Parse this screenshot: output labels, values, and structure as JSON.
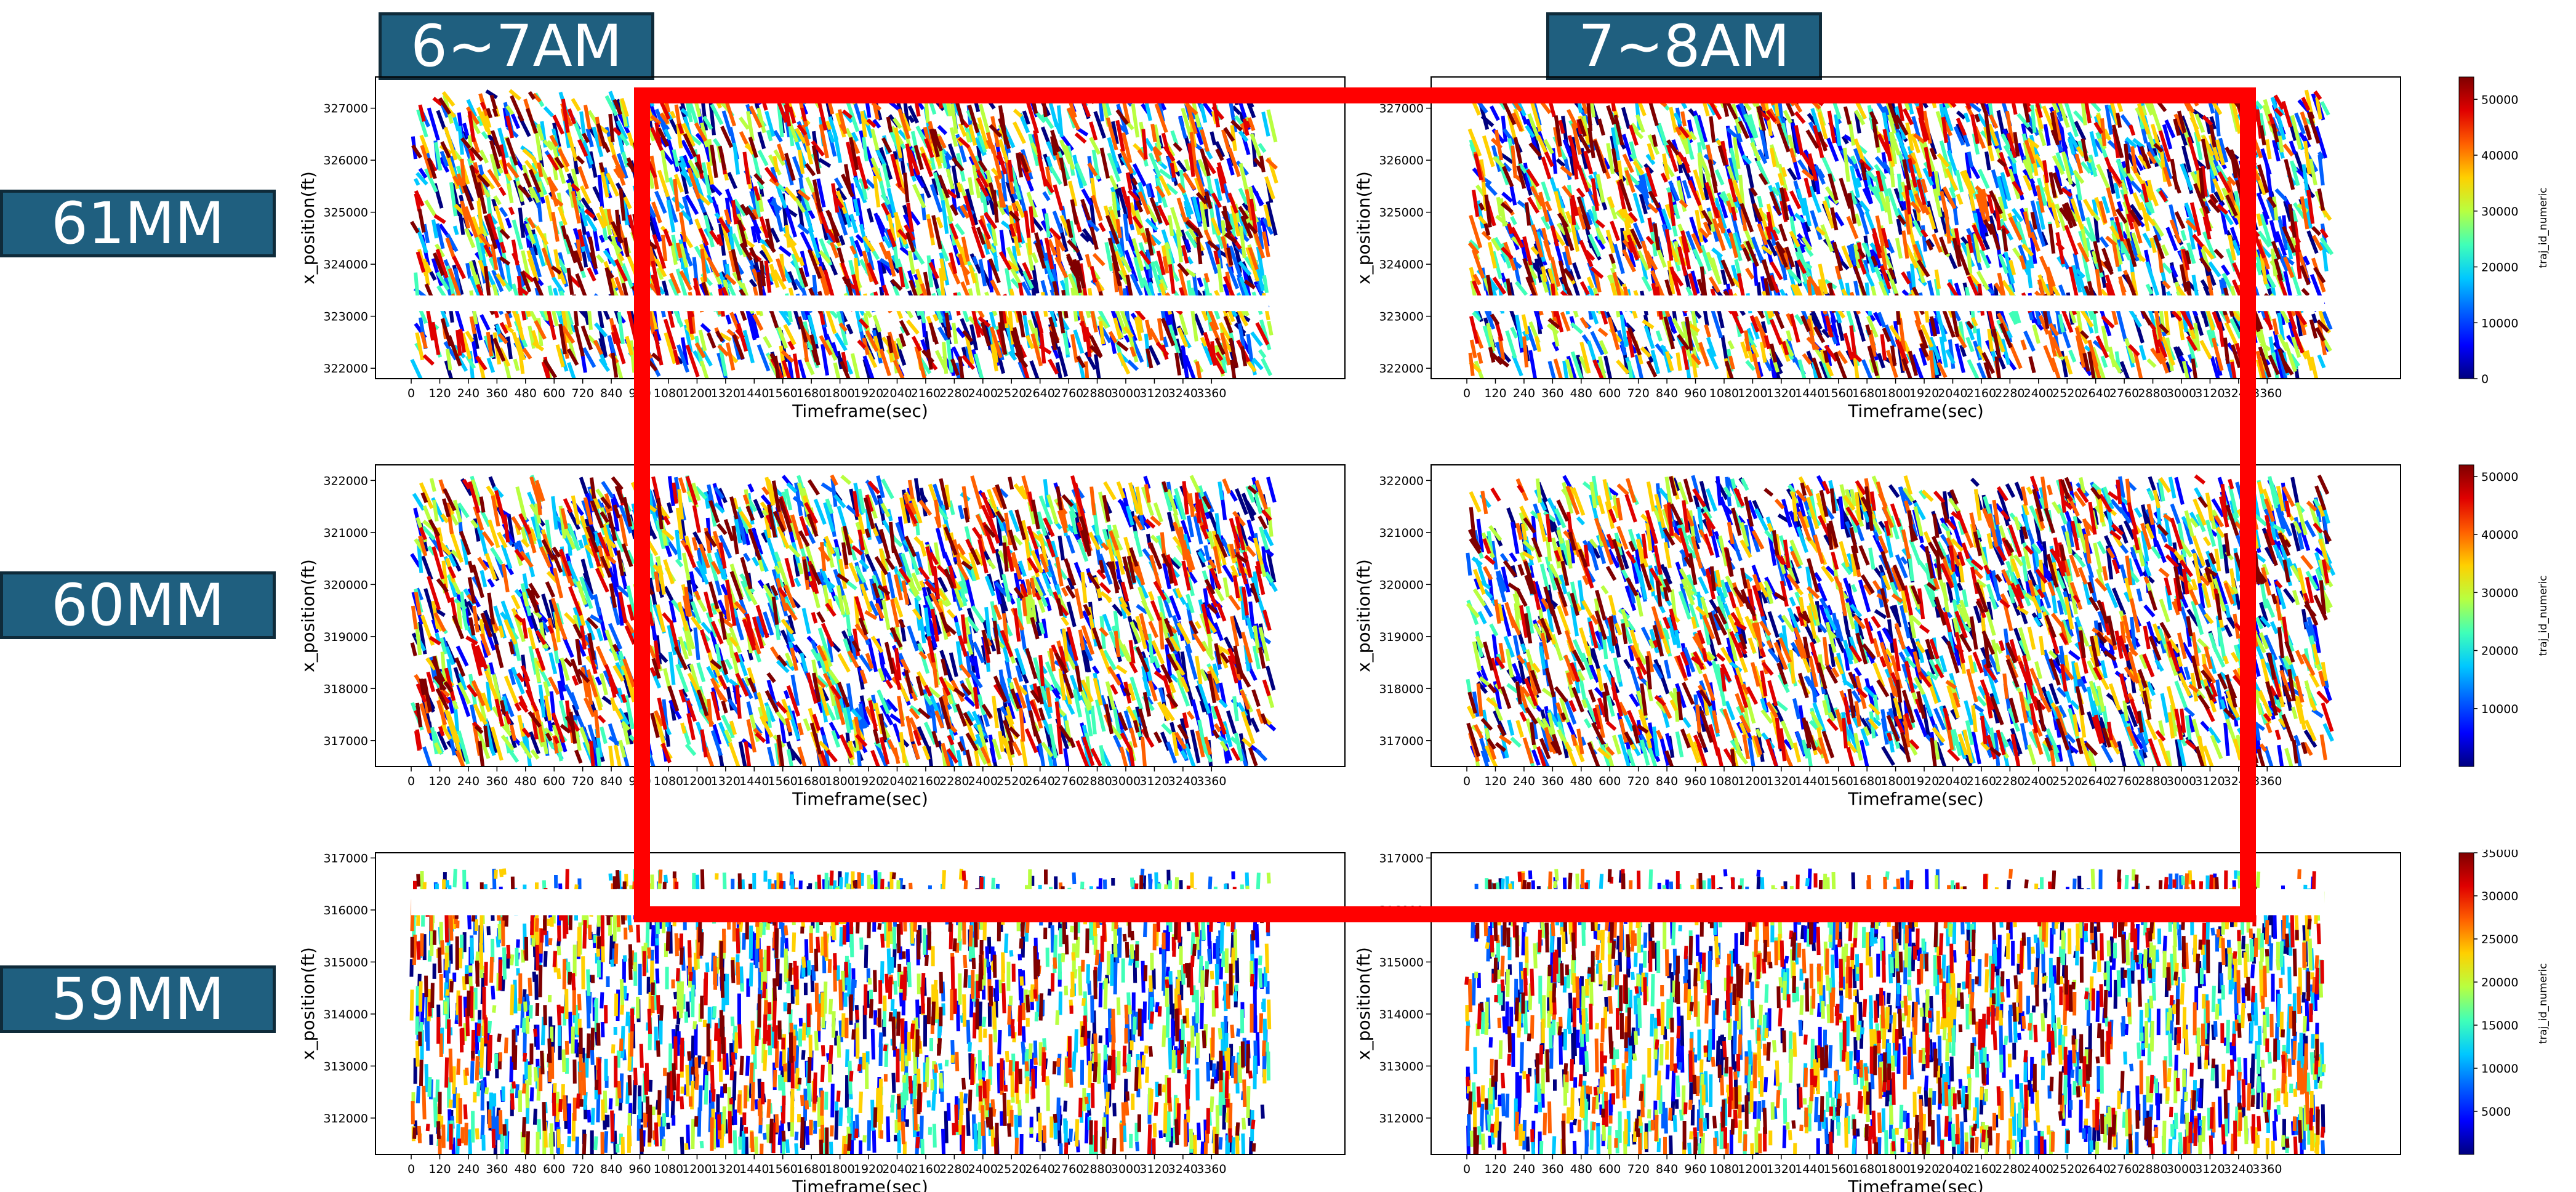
{
  "column_labels": [
    "6~7AM",
    "7~8AM"
  ],
  "row_labels": [
    "61MM",
    "60MM",
    "59MM"
  ],
  "palette": [
    "#00007f",
    "#0000ff",
    "#0060ff",
    "#00c8ff",
    "#40ffb8",
    "#b8ff40",
    "#ffd000",
    "#ff6000",
    "#e00000",
    "#7f0000"
  ],
  "highlight_color": "#ff0000",
  "chart_data": [
    {
      "type": "scatter",
      "name": "61MM 6~7AM",
      "xlabel": "Timeframe(sec)",
      "ylabel": "x_position(ft)",
      "xlim": [
        -150,
        3920
      ],
      "ylim": [
        321800,
        327600
      ],
      "xticks": [
        0,
        120,
        240,
        360,
        480,
        600,
        720,
        840,
        960,
        1080,
        1200,
        1320,
        1440,
        1560,
        1680,
        1800,
        1920,
        2040,
        2160,
        2280,
        2400,
        2520,
        2640,
        2760,
        2880,
        3000,
        3120,
        3240,
        3360
      ],
      "yticks": [
        322000,
        323000,
        324000,
        325000,
        326000,
        327000
      ],
      "data_x_range": [
        0,
        3600
      ],
      "data_y_range": [
        322100,
        327350
      ],
      "gaps": [
        [
          323100,
          323400
        ]
      ]
    },
    {
      "type": "scatter",
      "name": "61MM 7~8AM",
      "xlabel": "Timeframe(sec)",
      "ylabel": "x_position(ft)",
      "xlim": [
        -150,
        3920
      ],
      "ylim": [
        321800,
        327600
      ],
      "xticks": [
        0,
        120,
        240,
        360,
        480,
        600,
        720,
        840,
        960,
        1080,
        1200,
        1320,
        1440,
        1560,
        1680,
        1800,
        1920,
        2040,
        2160,
        2280,
        2400,
        2520,
        2640,
        2760,
        2880,
        3000,
        3120,
        3240,
        3360
      ],
      "yticks": [
        322000,
        323000,
        324000,
        325000,
        326000,
        327000
      ],
      "data_x_range": [
        0,
        3600
      ],
      "data_y_range": [
        322100,
        327350
      ],
      "gaps": [
        [
          323100,
          323400
        ]
      ],
      "colorbar": {
        "label": "traj_id_numeric",
        "min": 0,
        "max": 54000,
        "ticks": [
          0,
          10000,
          20000,
          30000,
          40000,
          50000
        ]
      }
    },
    {
      "type": "scatter",
      "name": "60MM 6~7AM",
      "xlabel": "Timeframe(sec)",
      "ylabel": "x_position(ft)",
      "xlim": [
        -150,
        3920
      ],
      "ylim": [
        316500,
        322300
      ],
      "xticks": [
        0,
        120,
        240,
        360,
        480,
        600,
        720,
        840,
        960,
        1080,
        1200,
        1320,
        1440,
        1560,
        1680,
        1800,
        1920,
        2040,
        2160,
        2280,
        2400,
        2520,
        2640,
        2760,
        2880,
        3000,
        3120,
        3240,
        3360
      ],
      "yticks": [
        317000,
        318000,
        319000,
        320000,
        321000,
        322000
      ],
      "data_x_range": [
        0,
        3600
      ],
      "data_y_range": [
        316800,
        322100
      ],
      "gaps": []
    },
    {
      "type": "scatter",
      "name": "60MM 7~8AM",
      "xlabel": "Timeframe(sec)",
      "ylabel": "x_position(ft)",
      "xlim": [
        -150,
        3920
      ],
      "ylim": [
        316500,
        322300
      ],
      "xticks": [
        0,
        120,
        240,
        360,
        480,
        600,
        720,
        840,
        960,
        1080,
        1200,
        1320,
        1440,
        1560,
        1680,
        1800,
        1920,
        2040,
        2160,
        2280,
        2400,
        2520,
        2640,
        2760,
        2880,
        3000,
        3120,
        3240,
        3360
      ],
      "yticks": [
        317000,
        318000,
        319000,
        320000,
        321000,
        322000
      ],
      "data_x_range": [
        0,
        3600
      ],
      "data_y_range": [
        316800,
        322100
      ],
      "gaps": [],
      "colorbar": {
        "label": "traj_id_numeric",
        "min": 0,
        "max": 52000,
        "ticks": [
          10000,
          20000,
          30000,
          40000,
          50000
        ]
      }
    },
    {
      "type": "scatter",
      "name": "59MM 6~7AM",
      "xlabel": "Timeframe(sec)",
      "ylabel": "x_position(ft)",
      "xlim": [
        -150,
        3920
      ],
      "ylim": [
        311300,
        317100
      ],
      "xticks": [
        0,
        120,
        240,
        360,
        480,
        600,
        720,
        840,
        960,
        1080,
        1200,
        1320,
        1440,
        1560,
        1680,
        1800,
        1920,
        2040,
        2160,
        2280,
        2400,
        2520,
        2640,
        2760,
        2880,
        3000,
        3120,
        3240,
        3360
      ],
      "yticks": [
        312000,
        313000,
        314000,
        315000,
        316000,
        317000
      ],
      "data_x_range": [
        0,
        3600
      ],
      "data_y_range": [
        311500,
        316800
      ],
      "gaps": [
        [
          315900,
          316400
        ]
      ]
    },
    {
      "type": "scatter",
      "name": "59MM 7~8AM",
      "xlabel": "Timeframe(sec)",
      "ylabel": "x_position(ft)",
      "xlim": [
        -150,
        3920
      ],
      "ylim": [
        311300,
        317100
      ],
      "xticks": [
        0,
        120,
        240,
        360,
        480,
        600,
        720,
        840,
        960,
        1080,
        1200,
        1320,
        1440,
        1560,
        1680,
        1800,
        1920,
        2040,
        2160,
        2280,
        2400,
        2520,
        2640,
        2760,
        2880,
        3000,
        3120,
        3240,
        3360
      ],
      "yticks": [
        312000,
        313000,
        314000,
        315000,
        316000,
        317000
      ],
      "data_x_range": [
        0,
        3600
      ],
      "data_y_range": [
        311500,
        316800
      ],
      "gaps": [
        [
          315900,
          316400
        ]
      ],
      "colorbar": {
        "label": "traj_id_numeric",
        "min": 0,
        "max": 35000,
        "ticks": [
          5000,
          10000,
          15000,
          20000,
          25000,
          30000,
          35000
        ]
      }
    }
  ]
}
